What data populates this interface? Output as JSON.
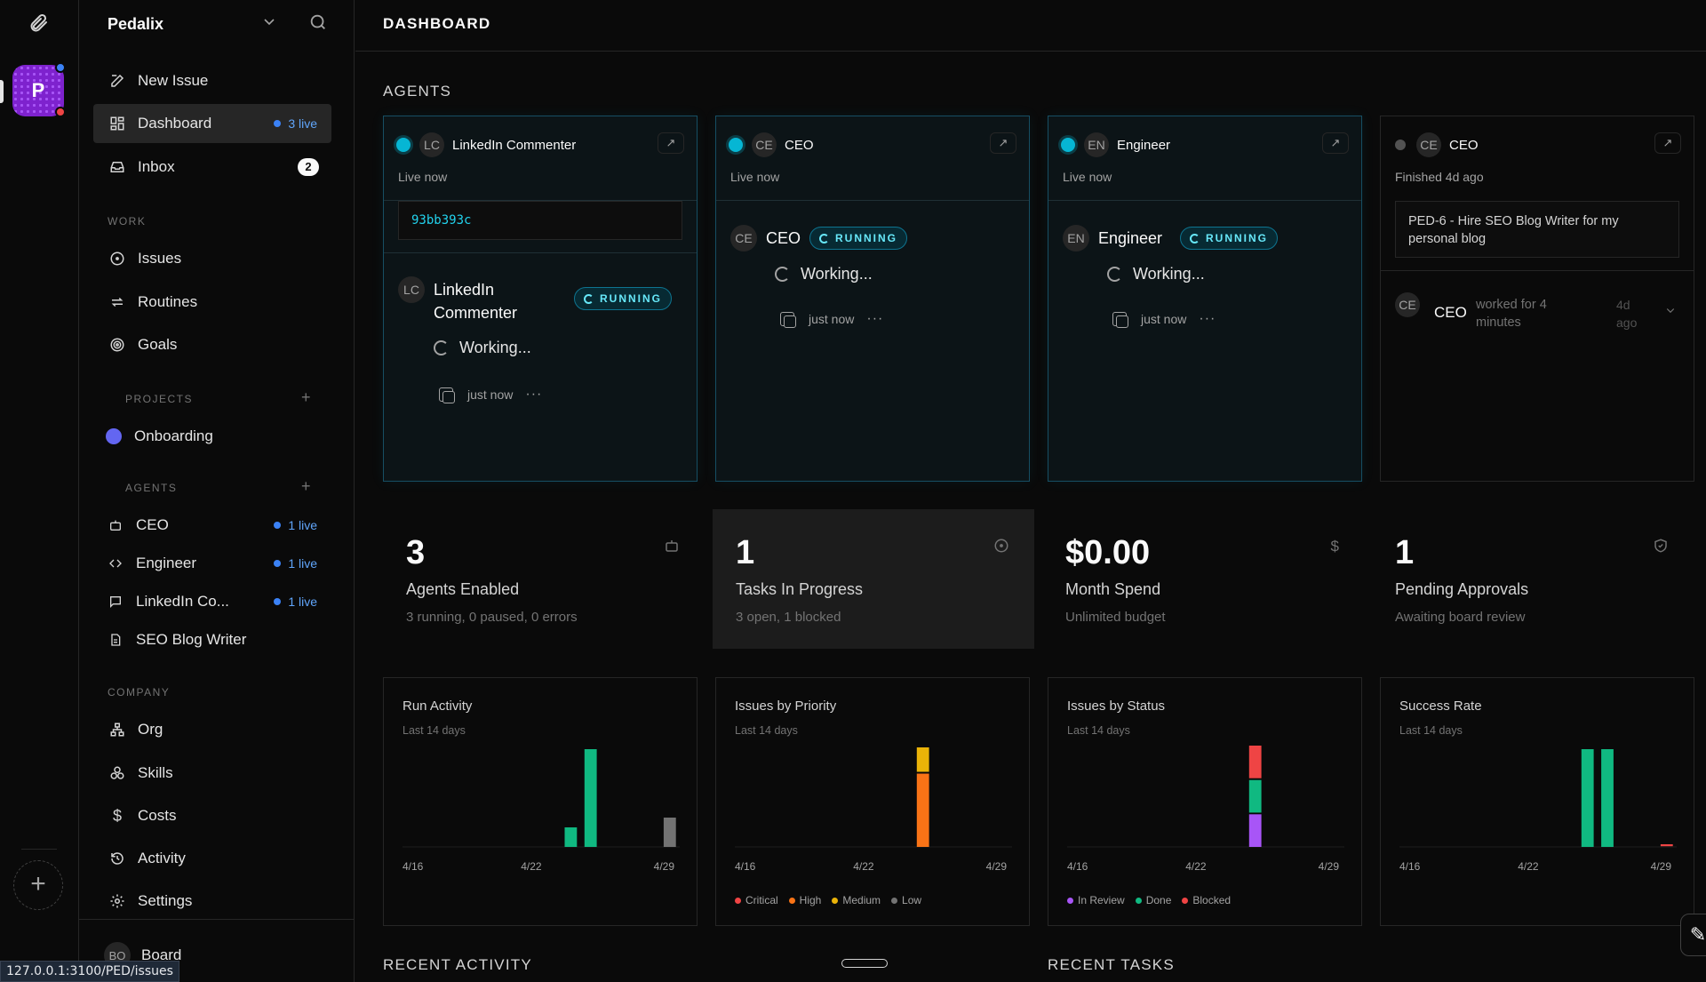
{
  "sidebar": {
    "company": "Pedalix",
    "nav": [
      {
        "label": "New Issue"
      },
      {
        "label": "Dashboard",
        "live": "3 live"
      },
      {
        "label": "Inbox",
        "badge": "2"
      }
    ],
    "work_label": "WORK",
    "work": [
      {
        "label": "Issues"
      },
      {
        "label": "Routines"
      },
      {
        "label": "Goals"
      }
    ],
    "projects_label": "PROJECTS",
    "projects": [
      {
        "label": "Onboarding",
        "color": "#6366f1"
      }
    ],
    "agents_label": "AGENTS",
    "agents": [
      {
        "label": "CEO",
        "live": "1 live"
      },
      {
        "label": "Engineer",
        "live": "1 live"
      },
      {
        "label": "LinkedIn Co...",
        "live": "1 live"
      },
      {
        "label": "SEO Blog Writer"
      }
    ],
    "company_label": "COMPANY",
    "company_items": [
      {
        "label": "Org"
      },
      {
        "label": "Skills"
      },
      {
        "label": "Costs"
      },
      {
        "label": "Activity"
      },
      {
        "label": "Settings"
      }
    ],
    "board": {
      "avatar": "BO",
      "label": "Board"
    },
    "rail_company_letter": "P",
    "url_tooltip": "127.0.0.1:3100/PED/issues"
  },
  "header": {
    "title": "DASHBOARD"
  },
  "agents_section": {
    "title": "AGENTS",
    "cards": [
      {
        "initials": "LC",
        "name": "LinkedIn Commenter",
        "status": "Live now",
        "hash": "93bb393c",
        "run": {
          "initials": "LC",
          "name_line1": "LinkedIn",
          "name_line2": "Commenter",
          "state": "RUNNING",
          "working": "Working...",
          "time": "just now",
          "more": "···"
        }
      },
      {
        "initials": "CE",
        "name": "CEO",
        "status": "Live now",
        "run": {
          "initials": "CE",
          "name": "CEO",
          "state": "RUNNING",
          "working": "Working...",
          "time": "just now",
          "more": "···"
        }
      },
      {
        "initials": "EN",
        "name": "Engineer",
        "status": "Live now",
        "run": {
          "initials": "EN",
          "name": "Engineer",
          "state": "RUNNING",
          "working": "Working...",
          "time": "just now",
          "more": "···"
        }
      },
      {
        "initials": "CE",
        "name": "CEO",
        "status": "Finished 4d ago",
        "issue": "PED-6 - Hire SEO Blog Writer for my personal blog",
        "run": {
          "initials": "CE",
          "name": "CEO",
          "desc": "worked for 4 minutes",
          "time": "4d ago"
        }
      }
    ]
  },
  "stats": [
    {
      "value": "3",
      "label": "Agents Enabled",
      "sub": "3 running, 0 paused, 0 errors",
      "icon": "bot-icon"
    },
    {
      "value": "1",
      "label": "Tasks In Progress",
      "sub": "3 open, 1 blocked",
      "icon": "circle-dot-icon"
    },
    {
      "value": "$0.00",
      "label": "Month Spend",
      "sub": "Unlimited budget",
      "icon": "dollar-icon"
    },
    {
      "value": "1",
      "label": "Pending Approvals",
      "sub": "Awaiting board review",
      "icon": "shield-icon"
    }
  ],
  "chart_data": [
    {
      "type": "bar",
      "title": "Run Activity",
      "subtitle": "Last 14 days",
      "x": [
        "4/16",
        "4/17",
        "4/18",
        "4/19",
        "4/20",
        "4/21",
        "4/22",
        "4/23",
        "4/24",
        "4/25",
        "4/26",
        "4/27",
        "4/28",
        "4/29"
      ],
      "x_ticks": [
        "4/16",
        "4/22",
        "4/29"
      ],
      "series": [
        {
          "color": "#10b981",
          "values": [
            0,
            0,
            0,
            0,
            0,
            0,
            0,
            0,
            1,
            5,
            0,
            0,
            0,
            0
          ]
        },
        {
          "color": "#737373",
          "values": [
            0,
            0,
            0,
            0,
            0,
            0,
            0,
            0,
            0,
            0,
            0,
            0,
            0,
            1.5
          ]
        }
      ]
    },
    {
      "type": "bar",
      "stacked": true,
      "title": "Issues by Priority",
      "subtitle": "Last 14 days",
      "x": [
        "4/16",
        "4/17",
        "4/18",
        "4/19",
        "4/20",
        "4/21",
        "4/22",
        "4/23",
        "4/24",
        "4/25",
        "4/26",
        "4/27",
        "4/28",
        "4/29"
      ],
      "x_ticks": [
        "4/16",
        "4/22",
        "4/29"
      ],
      "series": [
        {
          "name": "Critical",
          "color": "#ef4444",
          "values": [
            0,
            0,
            0,
            0,
            0,
            0,
            0,
            0,
            0,
            0,
            0,
            0,
            0,
            0
          ]
        },
        {
          "name": "High",
          "color": "#f97316",
          "values": [
            0,
            0,
            0,
            0,
            0,
            0,
            0,
            0,
            0,
            3,
            0,
            0,
            0,
            0
          ]
        },
        {
          "name": "Medium",
          "color": "#eab308",
          "values": [
            0,
            0,
            0,
            0,
            0,
            0,
            0,
            0,
            0,
            1,
            0,
            0,
            0,
            0
          ]
        },
        {
          "name": "Low",
          "color": "#737373",
          "values": [
            0,
            0,
            0,
            0,
            0,
            0,
            0,
            0,
            0,
            0,
            0,
            0,
            0,
            0
          ]
        }
      ]
    },
    {
      "type": "bar",
      "stacked": true,
      "title": "Issues by Status",
      "subtitle": "Last 14 days",
      "x": [
        "4/16",
        "4/17",
        "4/18",
        "4/19",
        "4/20",
        "4/21",
        "4/22",
        "4/23",
        "4/24",
        "4/25",
        "4/26",
        "4/27",
        "4/28",
        "4/29"
      ],
      "x_ticks": [
        "4/16",
        "4/22",
        "4/29"
      ],
      "series": [
        {
          "name": "In Review",
          "color": "#a855f7",
          "values": [
            0,
            0,
            0,
            0,
            0,
            0,
            0,
            0,
            0,
            1,
            0,
            0,
            0,
            0
          ]
        },
        {
          "name": "Done",
          "color": "#10b981",
          "values": [
            0,
            0,
            0,
            0,
            0,
            0,
            0,
            0,
            0,
            1,
            0,
            0,
            0,
            0
          ]
        },
        {
          "name": "Blocked",
          "color": "#ef4444",
          "values": [
            0,
            0,
            0,
            0,
            0,
            0,
            0,
            0,
            0,
            1,
            0,
            0,
            0,
            0
          ]
        }
      ]
    },
    {
      "type": "bar",
      "title": "Success Rate",
      "subtitle": "Last 14 days",
      "x": [
        "4/16",
        "4/17",
        "4/18",
        "4/19",
        "4/20",
        "4/21",
        "4/22",
        "4/23",
        "4/24",
        "4/25",
        "4/26",
        "4/27",
        "4/28",
        "4/29"
      ],
      "x_ticks": [
        "4/16",
        "4/22",
        "4/29"
      ],
      "series": [
        {
          "color": "#10b981",
          "values": [
            0,
            0,
            0,
            0,
            0,
            0,
            0,
            0,
            0,
            100,
            100,
            0,
            0,
            0
          ]
        },
        {
          "color": "#ef4444",
          "values": [
            0,
            0,
            0,
            0,
            0,
            0,
            0,
            0,
            0,
            0,
            0,
            0,
            0,
            2
          ]
        }
      ]
    }
  ],
  "recent_activity_title": "RECENT ACTIVITY",
  "recent_tasks_title": "RECENT TASKS"
}
